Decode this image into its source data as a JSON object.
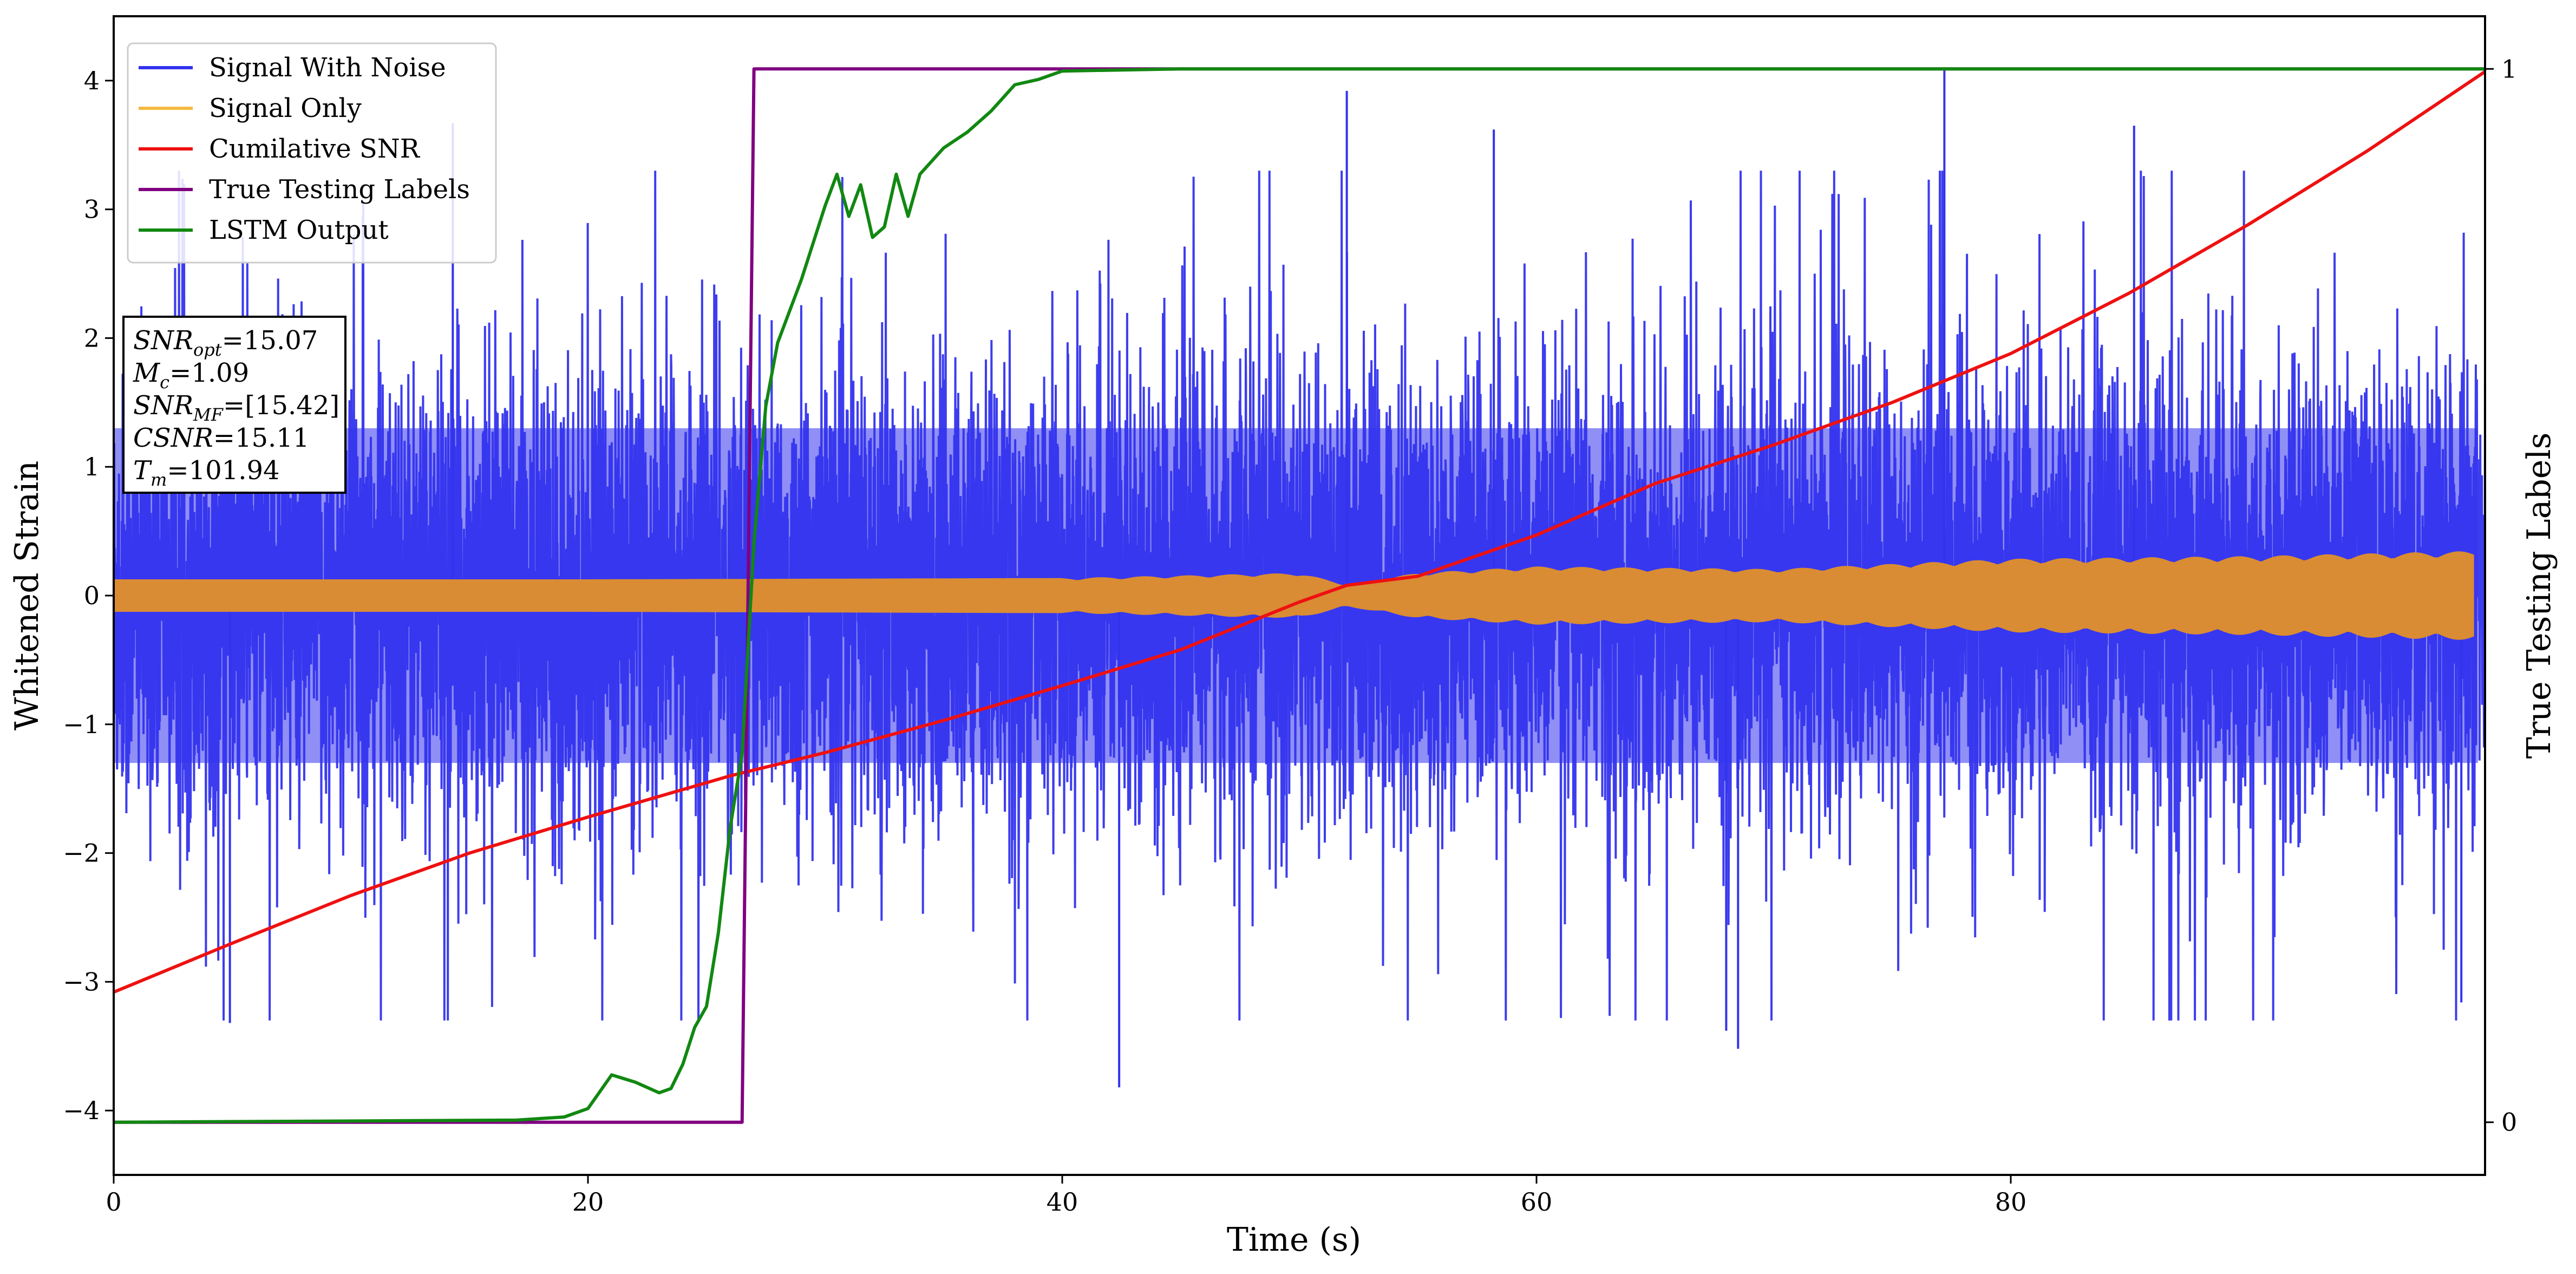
{
  "chart_data": {
    "type": "line",
    "xlabel": "Time (s)",
    "ylabel": "Whitened Strain",
    "y2label": "True Testing Labels",
    "xlim": [
      0,
      100
    ],
    "ylim": [
      -4.5,
      4.5
    ],
    "y2lim": [
      -0.05,
      1.05
    ],
    "x_ticks": [
      0,
      20,
      40,
      60,
      80
    ],
    "y_ticks": [
      -4,
      -3,
      -2,
      -1,
      0,
      1,
      2,
      3,
      4
    ],
    "y2_ticks": [
      0,
      1
    ],
    "grid": false,
    "legend_position": "top-left",
    "legend": [
      {
        "name": "Signal With Noise",
        "color": "#3333ee"
      },
      {
        "name": "Signal Only",
        "color": "#f5b942"
      },
      {
        "name": "Cumilative SNR",
        "color": "#ee1111"
      },
      {
        "name": "True Testing Labels",
        "color": "#800080"
      },
      {
        "name": "LSTM Output",
        "color": "#118811"
      }
    ],
    "info_box": [
      {
        "sym": "SNR",
        "sub": "opt",
        "val": "=15.07"
      },
      {
        "sym": "M",
        "sub": "c",
        "val": "=1.09"
      },
      {
        "sym": "SNR",
        "sub": "MF",
        "val": "=[15.42]"
      },
      {
        "sym": "CSNR",
        "sub": "",
        "val": "=15.11"
      },
      {
        "sym": "T",
        "sub": "m",
        "val": "=101.94"
      }
    ],
    "series": [
      {
        "name": "Signal With Noise",
        "color": "#3333ee",
        "style": "dense-noise",
        "band": [
          -1.3,
          1.3
        ],
        "extremes": [
          {
            "x": 14.3,
            "y": 3.67
          },
          {
            "x": 42.4,
            "y": -3.82
          },
          {
            "x": 77.2,
            "y": 4.1
          },
          {
            "x": 68.5,
            "y": -3.52
          },
          {
            "x": 4.9,
            "y": -3.32
          },
          {
            "x": 58.2,
            "y": 3.62
          },
          {
            "x": 85.2,
            "y": 3.65
          },
          {
            "x": 99.0,
            "y": -3.16
          },
          {
            "x": 68.0,
            "y": -3.38
          },
          {
            "x": 52.0,
            "y": 3.92
          }
        ]
      },
      {
        "name": "Signal Only",
        "color": "#d98c33",
        "style": "envelope",
        "envelope": [
          {
            "x": 0,
            "y": 0.12
          },
          {
            "x": 20,
            "y": 0.12
          },
          {
            "x": 40,
            "y": 0.13
          },
          {
            "x": 50,
            "y": 0.17
          },
          {
            "x": 52,
            "y": 0.08
          },
          {
            "x": 55,
            "y": 0.17
          },
          {
            "x": 60,
            "y": 0.22
          },
          {
            "x": 70,
            "y": 0.2
          },
          {
            "x": 80,
            "y": 0.28
          },
          {
            "x": 90,
            "y": 0.3
          },
          {
            "x": 99.5,
            "y": 0.34
          }
        ]
      },
      {
        "name": "Cumilative SNR",
        "color": "#ee1111",
        "points": [
          {
            "x": 0,
            "y": -3.08
          },
          {
            "x": 5,
            "y": -2.7
          },
          {
            "x": 10,
            "y": -2.33
          },
          {
            "x": 15,
            "y": -2.0
          },
          {
            "x": 20,
            "y": -1.72
          },
          {
            "x": 26,
            "y": -1.4
          },
          {
            "x": 30,
            "y": -1.22
          },
          {
            "x": 35,
            "y": -0.97
          },
          {
            "x": 40,
            "y": -0.7
          },
          {
            "x": 45,
            "y": -0.42
          },
          {
            "x": 50,
            "y": -0.05
          },
          {
            "x": 52,
            "y": 0.08
          },
          {
            "x": 55,
            "y": 0.15
          },
          {
            "x": 60,
            "y": 0.47
          },
          {
            "x": 65,
            "y": 0.87
          },
          {
            "x": 70,
            "y": 1.17
          },
          {
            "x": 75,
            "y": 1.5
          },
          {
            "x": 80,
            "y": 1.88
          },
          {
            "x": 85,
            "y": 2.35
          },
          {
            "x": 90,
            "y": 2.88
          },
          {
            "x": 95,
            "y": 3.45
          },
          {
            "x": 100,
            "y": 4.07
          }
        ]
      },
      {
        "name": "True Testing Labels",
        "color": "#800080",
        "axis": "right",
        "points": [
          {
            "x": 0,
            "y": 0
          },
          {
            "x": 26.5,
            "y": 0
          },
          {
            "x": 27.0,
            "y": 1
          },
          {
            "x": 100,
            "y": 1
          }
        ]
      },
      {
        "name": "LSTM Output",
        "color": "#118811",
        "axis": "right",
        "points": [
          {
            "x": 0,
            "y": 0
          },
          {
            "x": 17,
            "y": 0.002
          },
          {
            "x": 19,
            "y": 0.005
          },
          {
            "x": 20,
            "y": 0.013
          },
          {
            "x": 21,
            "y": 0.045
          },
          {
            "x": 22,
            "y": 0.038
          },
          {
            "x": 23,
            "y": 0.028
          },
          {
            "x": 23.5,
            "y": 0.032
          },
          {
            "x": 24,
            "y": 0.055
          },
          {
            "x": 24.5,
            "y": 0.09
          },
          {
            "x": 25.0,
            "y": 0.11
          },
          {
            "x": 25.5,
            "y": 0.18
          },
          {
            "x": 26.0,
            "y": 0.28
          },
          {
            "x": 26.5,
            "y": 0.35
          },
          {
            "x": 27.0,
            "y": 0.55
          },
          {
            "x": 27.5,
            "y": 0.68
          },
          {
            "x": 28.0,
            "y": 0.74
          },
          {
            "x": 29.0,
            "y": 0.8
          },
          {
            "x": 30.0,
            "y": 0.87
          },
          {
            "x": 30.5,
            "y": 0.9
          },
          {
            "x": 31.0,
            "y": 0.86
          },
          {
            "x": 31.5,
            "y": 0.89
          },
          {
            "x": 32.0,
            "y": 0.84
          },
          {
            "x": 32.5,
            "y": 0.85
          },
          {
            "x": 33.0,
            "y": 0.9
          },
          {
            "x": 33.5,
            "y": 0.86
          },
          {
            "x": 34.0,
            "y": 0.9
          },
          {
            "x": 35.0,
            "y": 0.925
          },
          {
            "x": 36.0,
            "y": 0.94
          },
          {
            "x": 37.0,
            "y": 0.96
          },
          {
            "x": 38.0,
            "y": 0.985
          },
          {
            "x": 39.0,
            "y": 0.99
          },
          {
            "x": 40.0,
            "y": 0.998
          },
          {
            "x": 45.0,
            "y": 1.0
          },
          {
            "x": 100,
            "y": 1.0
          }
        ]
      }
    ]
  }
}
